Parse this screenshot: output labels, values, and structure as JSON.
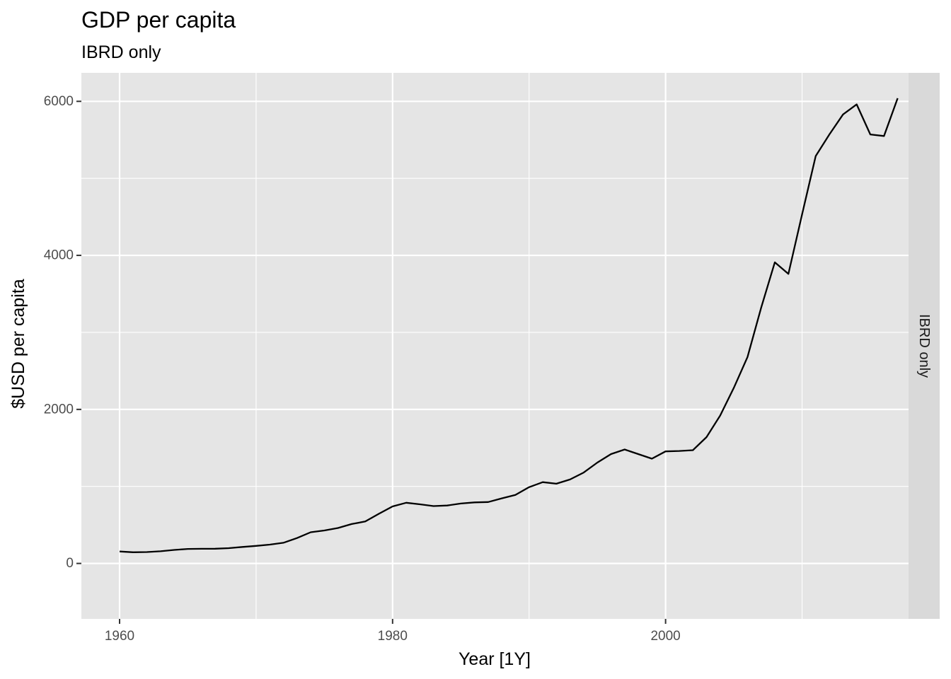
{
  "chart_data": {
    "type": "line",
    "title": "GDP per capita",
    "subtitle": "IBRD only",
    "xlabel": "Year [1Y]",
    "ylabel": "$USD per capita",
    "facet_label": "IBRD only",
    "xlim": [
      1957.2,
      2017.8
    ],
    "ylim": [
      -720,
      6370
    ],
    "x_ticks": [
      1960,
      1980,
      2000
    ],
    "x_minor_ticks": [
      1970,
      1990,
      2010
    ],
    "y_ticks": [
      0,
      2000,
      4000,
      6000
    ],
    "y_minor_ticks": [
      1000,
      3000,
      5000
    ],
    "grid": true,
    "legend": "none",
    "colors": {
      "panel": "#e5e5e5",
      "grid": "#ffffff",
      "line": "#000000",
      "strip": "#d9d9d9"
    },
    "series": [
      {
        "x": [
          1960,
          1961,
          1962,
          1963,
          1964,
          1965,
          1966,
          1967,
          1968,
          1969,
          1970,
          1971,
          1972,
          1973,
          1974,
          1975,
          1976,
          1977,
          1978,
          1979,
          1980,
          1981,
          1982,
          1983,
          1984,
          1985,
          1986,
          1987,
          1988,
          1989,
          1990,
          1991,
          1992,
          1993,
          1994,
          1995,
          1996,
          1997,
          1998,
          1999,
          2000,
          2001,
          2002,
          2003,
          2004,
          2005,
          2006,
          2007,
          2008,
          2009,
          2010,
          2011,
          2012,
          2013,
          2014,
          2015,
          2016,
          2017
        ],
        "values": [
          155,
          145,
          148,
          158,
          175,
          188,
          190,
          191,
          198,
          214,
          228,
          244,
          268,
          330,
          405,
          428,
          460,
          512,
          545,
          645,
          740,
          788,
          768,
          745,
          752,
          778,
          793,
          797,
          845,
          890,
          990,
          1055,
          1035,
          1090,
          1180,
          1310,
          1420,
          1480,
          1420,
          1360,
          1455,
          1460,
          1470,
          1640,
          1920,
          2280,
          2680,
          3320,
          3910,
          3760,
          4530,
          5290,
          5570,
          5830,
          5960,
          5570,
          5550,
          6040
        ]
      }
    ]
  }
}
